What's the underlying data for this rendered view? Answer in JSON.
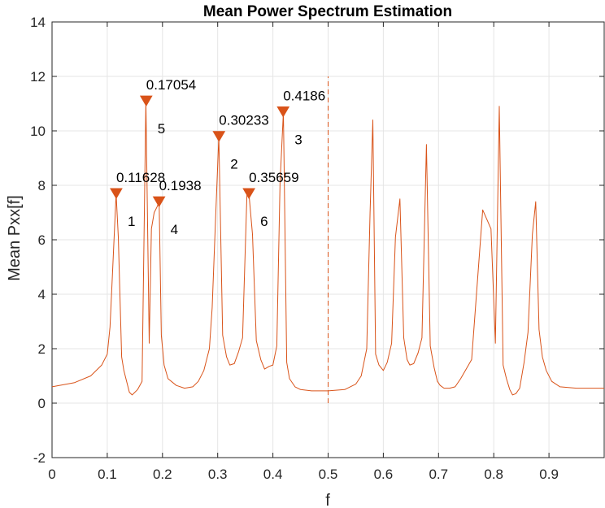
{
  "chart_data": {
    "type": "line",
    "title": "Mean Power Spectrum Estimation",
    "xlabel": "f",
    "ylabel": "Mean Pxx[f]",
    "xlim": [
      0,
      1
    ],
    "ylim": [
      -2,
      14
    ],
    "grid": true,
    "x_ticks": [
      "0",
      "0.1",
      "0.2",
      "0.3",
      "0.4",
      "0.5",
      "0.6",
      "0.7",
      "0.8",
      "0.9"
    ],
    "y_ticks": [
      "-2",
      "0",
      "2",
      "4",
      "6",
      "8",
      "10",
      "12",
      "14"
    ],
    "colors": {
      "series": "#D95319",
      "grid": "#e5e5e5",
      "axis": "#262626",
      "marker": "#D95319"
    },
    "series": [
      {
        "x": [
          0,
          0.04,
          0.07,
          0.09,
          0.1,
          0.105,
          0.11,
          0.116,
          0.12,
          0.126,
          0.13,
          0.14,
          0.145,
          0.155,
          0.163,
          0.17,
          0.176,
          0.18,
          0.185,
          0.19,
          0.194,
          0.198,
          0.203,
          0.21,
          0.225,
          0.24,
          0.255,
          0.265,
          0.275,
          0.285,
          0.29,
          0.296,
          0.302,
          0.309,
          0.316,
          0.322,
          0.33,
          0.338,
          0.345,
          0.353,
          0.357,
          0.363,
          0.37,
          0.378,
          0.385,
          0.393,
          0.4,
          0.407,
          0.413,
          0.419,
          0.425,
          0.43,
          0.44,
          0.45,
          0.47,
          0.5,
          0.53,
          0.55,
          0.56,
          0.57,
          0.576,
          0.581,
          0.586,
          0.592,
          0.6,
          0.607,
          0.615,
          0.622,
          0.63,
          0.637,
          0.643,
          0.648,
          0.655,
          0.663,
          0.67,
          0.678,
          0.685,
          0.692,
          0.698,
          0.703,
          0.71,
          0.72,
          0.73,
          0.74,
          0.76,
          0.78,
          0.795,
          0.803,
          0.81,
          0.817,
          0.823,
          0.829,
          0.834,
          0.84,
          0.847,
          0.855,
          0.862,
          0.87,
          0.876,
          0.882,
          0.888,
          0.895,
          0.905,
          0.92,
          0.95,
          1.0
        ],
        "y": [
          0.6,
          0.75,
          1.0,
          1.4,
          1.8,
          2.8,
          5.0,
          7.7,
          6.1,
          1.7,
          1.2,
          0.4,
          0.3,
          0.5,
          0.8,
          11.1,
          2.2,
          6.4,
          7.0,
          7.2,
          7.4,
          2.5,
          1.4,
          0.9,
          0.65,
          0.55,
          0.6,
          0.8,
          1.2,
          2.0,
          3.5,
          6.7,
          9.8,
          2.5,
          1.7,
          1.4,
          1.45,
          1.9,
          2.4,
          7.7,
          7.6,
          6.2,
          2.3,
          1.6,
          1.25,
          1.35,
          1.4,
          2.1,
          8.1,
          10.7,
          1.5,
          0.9,
          0.6,
          0.5,
          0.45,
          0.45,
          0.5,
          0.7,
          1.0,
          2.0,
          7.0,
          10.4,
          1.8,
          1.4,
          1.2,
          1.5,
          2.2,
          6.1,
          7.5,
          2.4,
          1.6,
          1.4,
          1.45,
          1.85,
          2.4,
          9.5,
          2.1,
          1.3,
          0.8,
          0.65,
          0.55,
          0.55,
          0.6,
          0.9,
          1.6,
          7.1,
          6.4,
          2.2,
          10.9,
          1.4,
          0.9,
          0.5,
          0.3,
          0.35,
          0.55,
          1.5,
          2.6,
          6.2,
          7.4,
          2.7,
          1.7,
          1.2,
          0.8,
          0.6,
          0.55,
          0.55
        ]
      }
    ],
    "peaks": [
      {
        "x": 0.11628,
        "y": 7.7,
        "value_label": "0.11628",
        "index_label": "1"
      },
      {
        "x": 0.30233,
        "y": 9.8,
        "value_label": "0.30233",
        "index_label": "2"
      },
      {
        "x": 0.4186,
        "y": 10.7,
        "value_label": "0.4186",
        "index_label": "3"
      },
      {
        "x": 0.1938,
        "y": 7.4,
        "value_label": "0.1938",
        "index_label": "4"
      },
      {
        "x": 0.17054,
        "y": 11.1,
        "value_label": "0.17054",
        "index_label": "5"
      },
      {
        "x": 0.35659,
        "y": 7.7,
        "value_label": "0.35659",
        "index_label": "6"
      }
    ],
    "reference_line": {
      "x": 0.5,
      "y_range": [
        0,
        12
      ],
      "style": "dashed"
    }
  }
}
